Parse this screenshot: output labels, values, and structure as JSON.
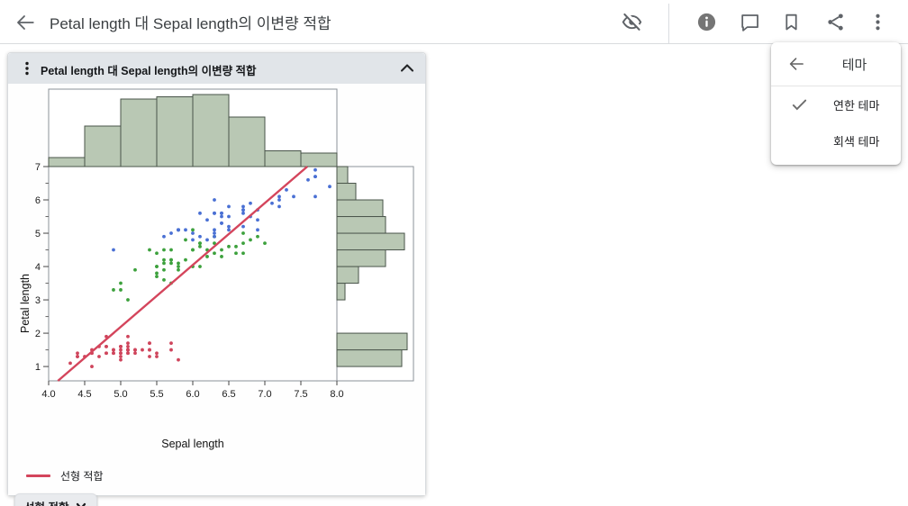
{
  "header": {
    "title": "Petal length 대 Sepal length의 이변량 적합",
    "icons": [
      "back-arrow",
      "hide-visibility",
      "info",
      "comment",
      "bookmark",
      "share",
      "more-options"
    ]
  },
  "panel": {
    "title": "Petal length 대 Sepal length의 이변량 적합",
    "legend": {
      "label": "선형 적합",
      "color": "#d4455c"
    },
    "fit_button": {
      "label": "선형 적합"
    }
  },
  "menu": {
    "title": "테마",
    "items": [
      {
        "label": "연한 테마",
        "checked": true
      },
      {
        "label": "회색 테마",
        "checked": false
      }
    ]
  },
  "chart_data": {
    "type": "scatter",
    "title": "Petal length 대 Sepal length의 이변량 적합",
    "xlabel": "Sepal length",
    "ylabel": "Petal length",
    "xlim": [
      4.0,
      8.0
    ],
    "ylim": [
      0.57,
      7.0
    ],
    "x_ticks": [
      "4.0",
      "4.5",
      "5.0",
      "5.5",
      "6.0",
      "6.5",
      "7.0",
      "7.5",
      "8.0"
    ],
    "y_ticks": [
      "7",
      "6",
      "5",
      "4",
      "3",
      "2",
      "1"
    ],
    "grid": false,
    "legend_position": "bottom-left",
    "frame_color": "#8b9198",
    "series": [
      {
        "name": "red",
        "color": "#cf455c",
        "points": [
          [
            5.1,
            1.4
          ],
          [
            4.9,
            1.4
          ],
          [
            4.7,
            1.3
          ],
          [
            4.6,
            1.5
          ],
          [
            5.0,
            1.4
          ],
          [
            5.4,
            1.7
          ],
          [
            4.6,
            1.4
          ],
          [
            5.0,
            1.5
          ],
          [
            4.4,
            1.4
          ],
          [
            4.9,
            1.5
          ],
          [
            5.4,
            1.5
          ],
          [
            4.8,
            1.6
          ],
          [
            4.8,
            1.4
          ],
          [
            4.3,
            1.1
          ],
          [
            5.8,
            1.2
          ],
          [
            5.7,
            1.5
          ],
          [
            5.4,
            1.3
          ],
          [
            5.1,
            1.4
          ],
          [
            5.7,
            1.7
          ],
          [
            5.1,
            1.5
          ],
          [
            5.4,
            1.7
          ],
          [
            5.1,
            1.5
          ],
          [
            4.6,
            1.0
          ],
          [
            5.1,
            1.7
          ],
          [
            4.8,
            1.9
          ],
          [
            5.0,
            1.6
          ],
          [
            5.0,
            1.6
          ],
          [
            5.2,
            1.5
          ],
          [
            5.2,
            1.4
          ],
          [
            4.7,
            1.6
          ],
          [
            4.8,
            1.6
          ],
          [
            5.4,
            1.5
          ],
          [
            5.2,
            1.5
          ],
          [
            5.5,
            1.4
          ],
          [
            4.9,
            1.5
          ],
          [
            5.0,
            1.2
          ],
          [
            5.5,
            1.3
          ],
          [
            4.9,
            1.4
          ],
          [
            4.4,
            1.3
          ],
          [
            5.1,
            1.5
          ],
          [
            5.0,
            1.3
          ],
          [
            4.5,
            1.3
          ],
          [
            4.4,
            1.3
          ],
          [
            5.0,
            1.6
          ],
          [
            5.1,
            1.9
          ],
          [
            4.8,
            1.4
          ],
          [
            5.1,
            1.6
          ],
          [
            4.6,
            1.4
          ],
          [
            5.3,
            1.5
          ],
          [
            5.0,
            1.4
          ]
        ]
      },
      {
        "name": "green",
        "color": "#3da13d",
        "points": [
          [
            7.0,
            4.7
          ],
          [
            6.4,
            4.5
          ],
          [
            6.9,
            4.9
          ],
          [
            5.5,
            4.0
          ],
          [
            6.5,
            4.6
          ],
          [
            5.7,
            4.5
          ],
          [
            6.3,
            4.7
          ],
          [
            4.9,
            3.3
          ],
          [
            6.6,
            4.6
          ],
          [
            5.2,
            3.9
          ],
          [
            5.0,
            3.5
          ],
          [
            5.9,
            4.2
          ],
          [
            6.0,
            4.0
          ],
          [
            6.1,
            4.7
          ],
          [
            5.6,
            3.6
          ],
          [
            6.7,
            4.4
          ],
          [
            5.6,
            4.5
          ],
          [
            5.8,
            4.1
          ],
          [
            6.2,
            4.5
          ],
          [
            5.6,
            3.9
          ],
          [
            5.9,
            4.8
          ],
          [
            6.1,
            4.0
          ],
          [
            6.3,
            4.9
          ],
          [
            6.1,
            4.7
          ],
          [
            6.4,
            4.3
          ],
          [
            6.6,
            4.4
          ],
          [
            6.8,
            4.8
          ],
          [
            6.7,
            5.0
          ],
          [
            6.0,
            4.5
          ],
          [
            5.7,
            3.5
          ],
          [
            5.5,
            3.8
          ],
          [
            5.5,
            3.7
          ],
          [
            5.8,
            3.9
          ],
          [
            6.0,
            5.1
          ],
          [
            5.4,
            4.5
          ],
          [
            6.0,
            4.5
          ],
          [
            6.7,
            4.7
          ],
          [
            6.3,
            4.4
          ],
          [
            5.6,
            4.1
          ],
          [
            5.5,
            4.0
          ],
          [
            5.5,
            4.4
          ],
          [
            6.1,
            4.6
          ],
          [
            5.8,
            4.0
          ],
          [
            5.0,
            3.3
          ],
          [
            5.6,
            4.2
          ],
          [
            5.7,
            4.2
          ],
          [
            5.7,
            4.2
          ],
          [
            6.2,
            4.3
          ],
          [
            5.1,
            3.0
          ],
          [
            5.7,
            4.1
          ]
        ]
      },
      {
        "name": "blue",
        "color": "#4a70d4",
        "points": [
          [
            6.3,
            6.0
          ],
          [
            5.8,
            5.1
          ],
          [
            7.1,
            5.9
          ],
          [
            6.3,
            5.6
          ],
          [
            6.5,
            5.8
          ],
          [
            7.6,
            6.6
          ],
          [
            4.9,
            4.5
          ],
          [
            7.3,
            6.3
          ],
          [
            6.7,
            5.8
          ],
          [
            7.2,
            6.1
          ],
          [
            6.5,
            5.1
          ],
          [
            6.4,
            5.3
          ],
          [
            6.8,
            5.5
          ],
          [
            5.7,
            5.0
          ],
          [
            5.8,
            5.1
          ],
          [
            6.4,
            5.3
          ],
          [
            6.5,
            5.5
          ],
          [
            7.7,
            6.7
          ],
          [
            7.7,
            6.9
          ],
          [
            6.0,
            5.0
          ],
          [
            6.9,
            5.7
          ],
          [
            5.6,
            4.9
          ],
          [
            7.7,
            6.7
          ],
          [
            6.3,
            4.9
          ],
          [
            6.7,
            5.7
          ],
          [
            7.2,
            6.0
          ],
          [
            6.2,
            4.8
          ],
          [
            6.1,
            4.9
          ],
          [
            6.4,
            5.6
          ],
          [
            7.2,
            5.8
          ],
          [
            7.4,
            6.1
          ],
          [
            7.9,
            6.4
          ],
          [
            6.4,
            5.6
          ],
          [
            6.3,
            5.1
          ],
          [
            6.1,
            5.6
          ],
          [
            7.7,
            6.1
          ],
          [
            6.3,
            5.6
          ],
          [
            6.4,
            5.5
          ],
          [
            6.0,
            4.8
          ],
          [
            6.9,
            5.4
          ],
          [
            6.7,
            5.6
          ],
          [
            6.9,
            5.1
          ],
          [
            5.8,
            5.1
          ],
          [
            6.8,
            5.9
          ],
          [
            6.7,
            5.7
          ],
          [
            6.7,
            5.2
          ],
          [
            6.3,
            5.0
          ],
          [
            6.5,
            5.2
          ],
          [
            6.2,
            5.4
          ],
          [
            5.9,
            5.1
          ]
        ]
      }
    ],
    "fit_line": {
      "label": "선형 적합",
      "color": "#d4455c",
      "slope": 1.858,
      "intercept": -7.101
    },
    "top_histogram": {
      "variable": "Sepal length",
      "bins_start": 4.0,
      "bin_width": 0.5,
      "counts": [
        4,
        18,
        30,
        31,
        32,
        22,
        7,
        6
      ],
      "fill": "#b9c8b4",
      "stroke": "#49544a"
    },
    "right_histogram": {
      "variable": "Petal length",
      "bins_start": 1.0,
      "bin_width": 0.5,
      "counts": [
        24,
        26,
        0,
        0,
        3,
        8,
        18,
        25,
        18,
        17,
        7,
        4
      ],
      "fill": "#b9c8b4",
      "stroke": "#49544a"
    }
  }
}
